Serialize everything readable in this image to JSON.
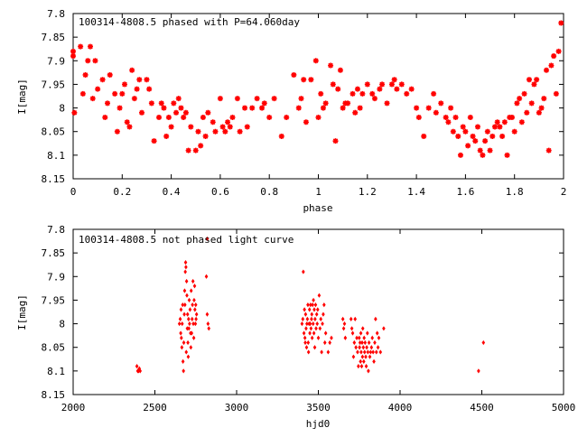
{
  "chart_data": [
    {
      "type": "scatter",
      "title": "100314-4808.5 phased with P=64.060day",
      "xlabel": "phase",
      "ylabel": "I[mag]",
      "xlim": [
        0,
        2
      ],
      "ylim": [
        8.15,
        7.8
      ],
      "y_inverted": true,
      "grid": false,
      "xticks": [
        0,
        0.2,
        0.4,
        0.6,
        0.8,
        1,
        1.2,
        1.4,
        1.6,
        1.8,
        2
      ],
      "xtick_labels": [
        "0",
        "0.2",
        "0.4",
        "0.6",
        "0.8",
        "1",
        "1.2",
        "1.4",
        "1.6",
        "1.8",
        "2"
      ],
      "yticks": [
        7.8,
        7.85,
        7.9,
        7.95,
        8,
        8.05,
        8.1,
        8.15
      ],
      "ytick_labels": [
        "7.8",
        "7.85",
        "7.9",
        "7.95",
        "8",
        "8.05",
        "8.1",
        "8.15"
      ],
      "marker": "star",
      "color": "#ff0000",
      "points": [
        [
          0.0,
          7.88
        ],
        [
          0.0,
          7.89
        ],
        [
          0.005,
          8.01
        ],
        [
          0.03,
          7.87
        ],
        [
          0.04,
          7.97
        ],
        [
          0.05,
          7.93
        ],
        [
          0.06,
          7.9
        ],
        [
          0.07,
          7.87
        ],
        [
          0.08,
          7.98
        ],
        [
          0.09,
          7.9
        ],
        [
          0.1,
          7.96
        ],
        [
          0.12,
          7.94
        ],
        [
          0.13,
          8.02
        ],
        [
          0.14,
          7.99
        ],
        [
          0.15,
          7.93
        ],
        [
          0.17,
          7.97
        ],
        [
          0.18,
          8.05
        ],
        [
          0.19,
          8.0
        ],
        [
          0.2,
          7.97
        ],
        [
          0.21,
          7.95
        ],
        [
          0.22,
          8.03
        ],
        [
          0.23,
          8.04
        ],
        [
          0.24,
          7.92
        ],
        [
          0.25,
          7.98
        ],
        [
          0.26,
          7.96
        ],
        [
          0.27,
          7.94
        ],
        [
          0.28,
          8.01
        ],
        [
          0.3,
          7.94
        ],
        [
          0.31,
          7.96
        ],
        [
          0.32,
          7.99
        ],
        [
          0.33,
          8.07
        ],
        [
          0.35,
          8.02
        ],
        [
          0.36,
          7.99
        ],
        [
          0.37,
          8.0
        ],
        [
          0.38,
          8.06
        ],
        [
          0.39,
          8.02
        ],
        [
          0.4,
          8.04
        ],
        [
          0.41,
          7.99
        ],
        [
          0.42,
          8.01
        ],
        [
          0.43,
          7.98
        ],
        [
          0.44,
          8.0
        ],
        [
          0.45,
          8.02
        ],
        [
          0.46,
          8.01
        ],
        [
          0.47,
          8.09
        ],
        [
          0.48,
          8.04
        ],
        [
          0.5,
          8.09
        ],
        [
          0.51,
          8.05
        ],
        [
          0.52,
          8.08
        ],
        [
          0.53,
          8.02
        ],
        [
          0.54,
          8.06
        ],
        [
          0.55,
          8.01
        ],
        [
          0.57,
          8.03
        ],
        [
          0.58,
          8.05
        ],
        [
          0.6,
          7.98
        ],
        [
          0.61,
          8.04
        ],
        [
          0.62,
          8.05
        ],
        [
          0.63,
          8.03
        ],
        [
          0.64,
          8.04
        ],
        [
          0.65,
          8.02
        ],
        [
          0.67,
          7.98
        ],
        [
          0.68,
          8.05
        ],
        [
          0.7,
          8.0
        ],
        [
          0.71,
          8.04
        ],
        [
          0.73,
          8.0
        ],
        [
          0.75,
          7.98
        ],
        [
          0.77,
          8.0
        ],
        [
          0.78,
          7.99
        ],
        [
          0.8,
          8.02
        ],
        [
          0.82,
          7.98
        ],
        [
          0.85,
          8.06
        ],
        [
          0.87,
          8.02
        ],
        [
          0.9,
          7.93
        ],
        [
          0.92,
          8.0
        ],
        [
          0.93,
          7.98
        ],
        [
          0.94,
          7.94
        ],
        [
          0.95,
          8.03
        ],
        [
          0.97,
          7.94
        ],
        [
          0.99,
          7.9
        ],
        [
          1.0,
          8.02
        ],
        [
          1.01,
          7.97
        ],
        [
          1.02,
          8.0
        ],
        [
          1.03,
          7.99
        ],
        [
          1.05,
          7.91
        ],
        [
          1.06,
          7.95
        ],
        [
          1.07,
          8.07
        ],
        [
          1.08,
          7.96
        ],
        [
          1.09,
          7.92
        ],
        [
          1.1,
          8.0
        ],
        [
          1.11,
          7.99
        ],
        [
          1.12,
          7.99
        ],
        [
          1.14,
          7.97
        ],
        [
          1.15,
          8.01
        ],
        [
          1.16,
          7.96
        ],
        [
          1.17,
          8.0
        ],
        [
          1.18,
          7.97
        ],
        [
          1.2,
          7.95
        ],
        [
          1.22,
          7.97
        ],
        [
          1.23,
          7.98
        ],
        [
          1.25,
          7.96
        ],
        [
          1.26,
          7.95
        ],
        [
          1.28,
          7.99
        ],
        [
          1.3,
          7.95
        ],
        [
          1.31,
          7.94
        ],
        [
          1.32,
          7.96
        ],
        [
          1.34,
          7.95
        ],
        [
          1.36,
          7.97
        ],
        [
          1.38,
          7.96
        ],
        [
          1.4,
          8.0
        ],
        [
          1.41,
          8.02
        ],
        [
          1.43,
          8.06
        ],
        [
          1.45,
          8.0
        ],
        [
          1.47,
          7.97
        ],
        [
          1.48,
          8.01
        ],
        [
          1.5,
          7.99
        ],
        [
          1.52,
          8.02
        ],
        [
          1.53,
          8.03
        ],
        [
          1.54,
          8.0
        ],
        [
          1.55,
          8.05
        ],
        [
          1.56,
          8.02
        ],
        [
          1.57,
          8.06
        ],
        [
          1.58,
          8.1
        ],
        [
          1.59,
          8.04
        ],
        [
          1.6,
          8.05
        ],
        [
          1.61,
          8.08
        ],
        [
          1.62,
          8.02
        ],
        [
          1.63,
          8.06
        ],
        [
          1.64,
          8.07
        ],
        [
          1.65,
          8.04
        ],
        [
          1.66,
          8.09
        ],
        [
          1.67,
          8.1
        ],
        [
          1.68,
          8.07
        ],
        [
          1.69,
          8.05
        ],
        [
          1.7,
          8.09
        ],
        [
          1.71,
          8.06
        ],
        [
          1.72,
          8.04
        ],
        [
          1.73,
          8.03
        ],
        [
          1.74,
          8.04
        ],
        [
          1.75,
          8.06
        ],
        [
          1.76,
          8.03
        ],
        [
          1.77,
          8.1
        ],
        [
          1.78,
          8.02
        ],
        [
          1.79,
          8.02
        ],
        [
          1.8,
          8.05
        ],
        [
          1.81,
          7.99
        ],
        [
          1.82,
          7.98
        ],
        [
          1.83,
          8.03
        ],
        [
          1.84,
          7.97
        ],
        [
          1.85,
          8.01
        ],
        [
          1.86,
          7.94
        ],
        [
          1.87,
          7.99
        ],
        [
          1.88,
          7.95
        ],
        [
          1.89,
          7.94
        ],
        [
          1.9,
          8.01
        ],
        [
          1.91,
          8.0
        ],
        [
          1.92,
          7.98
        ],
        [
          1.93,
          7.92
        ],
        [
          1.94,
          8.09
        ],
        [
          1.95,
          7.91
        ],
        [
          1.96,
          7.89
        ],
        [
          1.97,
          7.97
        ],
        [
          1.98,
          7.88
        ],
        [
          1.99,
          7.82
        ]
      ]
    },
    {
      "type": "scatter",
      "title": "100314-4808.5 not phased light curve",
      "xlabel": "hjd0",
      "ylabel": "I[mag]",
      "xlim": [
        2000,
        5000
      ],
      "ylim": [
        8.15,
        7.8
      ],
      "y_inverted": true,
      "grid": false,
      "xticks": [
        2000,
        2500,
        3000,
        3500,
        4000,
        4500,
        5000
      ],
      "xtick_labels": [
        "2000",
        "2500",
        "3000",
        "3500",
        "4000",
        "4500",
        "5000"
      ],
      "yticks": [
        7.8,
        7.85,
        7.9,
        7.95,
        8,
        8.05,
        8.1,
        8.15
      ],
      "ytick_labels": [
        "7.8",
        "7.85",
        "7.9",
        "7.95",
        "8",
        "8.05",
        "8.1",
        "8.15"
      ],
      "marker": "diamond",
      "color": "#ff0000",
      "points": [
        [
          2390,
          8.09
        ],
        [
          2395,
          8.1
        ],
        [
          2400,
          8.1
        ],
        [
          2405,
          8.095
        ],
        [
          2410,
          8.1
        ],
        [
          2650,
          8.0
        ],
        [
          2655,
          7.99
        ],
        [
          2658,
          8.02
        ],
        [
          2660,
          7.97
        ],
        [
          2662,
          8.03
        ],
        [
          2665,
          8.05
        ],
        [
          2667,
          8.0
        ],
        [
          2670,
          7.96
        ],
        [
          2672,
          8.08
        ],
        [
          2675,
          8.1
        ],
        [
          2677,
          8.04
        ],
        [
          2680,
          7.98
        ],
        [
          2682,
          7.93
        ],
        [
          2684,
          7.96
        ],
        [
          2686,
          7.89
        ],
        [
          2688,
          7.87
        ],
        [
          2690,
          7.88
        ],
        [
          2692,
          8.06
        ],
        [
          2694,
          7.91
        ],
        [
          2696,
          7.94
        ],
        [
          2698,
          8.01
        ],
        [
          2700,
          7.98
        ],
        [
          2702,
          8.04
        ],
        [
          2704,
          8.07
        ],
        [
          2706,
          7.99
        ],
        [
          2708,
          8.01
        ],
        [
          2710,
          7.95
        ],
        [
          2712,
          8.0
        ],
        [
          2715,
          7.97
        ],
        [
          2718,
          8.02
        ],
        [
          2720,
          8.05
        ],
        [
          2722,
          7.93
        ],
        [
          2725,
          8.02
        ],
        [
          2728,
          7.99
        ],
        [
          2730,
          7.96
        ],
        [
          2733,
          7.91
        ],
        [
          2735,
          8.0
        ],
        [
          2738,
          8.03
        ],
        [
          2740,
          7.95
        ],
        [
          2743,
          7.92
        ],
        [
          2745,
          7.97
        ],
        [
          2748,
          8.0
        ],
        [
          2750,
          7.96
        ],
        [
          2752,
          7.99
        ],
        [
          2755,
          7.98
        ],
        [
          2815,
          7.9
        ],
        [
          2820,
          7.98
        ],
        [
          2825,
          8.0
        ],
        [
          2830,
          8.01
        ],
        [
          2820,
          7.82
        ],
        [
          3400,
          8.0
        ],
        [
          3405,
          7.99
        ],
        [
          3408,
          7.89
        ],
        [
          3412,
          8.02
        ],
        [
          3415,
          7.97
        ],
        [
          3418,
          8.03
        ],
        [
          3420,
          8.04
        ],
        [
          3422,
          7.98
        ],
        [
          3425,
          8.01
        ],
        [
          3428,
          8.05
        ],
        [
          3430,
          8.0
        ],
        [
          3433,
          7.99
        ],
        [
          3436,
          7.96
        ],
        [
          3438,
          8.04
        ],
        [
          3440,
          8.06
        ],
        [
          3443,
          8.0
        ],
        [
          3446,
          7.97
        ],
        [
          3448,
          8.02
        ],
        [
          3450,
          8.0
        ],
        [
          3452,
          7.96
        ],
        [
          3455,
          8.01
        ],
        [
          3458,
          7.99
        ],
        [
          3460,
          7.98
        ],
        [
          3462,
          8.03
        ],
        [
          3465,
          7.96
        ],
        [
          3468,
          8.0
        ],
        [
          3470,
          7.95
        ],
        [
          3473,
          8.02
        ],
        [
          3475,
          7.97
        ],
        [
          3478,
          8.05
        ],
        [
          3480,
          7.99
        ],
        [
          3483,
          7.96
        ],
        [
          3486,
          8.01
        ],
        [
          3490,
          7.98
        ],
        [
          3493,
          8.0
        ],
        [
          3496,
          7.97
        ],
        [
          3500,
          8.03
        ],
        [
          3505,
          7.94
        ],
        [
          3510,
          8.01
        ],
        [
          3515,
          7.99
        ],
        [
          3520,
          8.06
        ],
        [
          3525,
          8.0
        ],
        [
          3530,
          7.98
        ],
        [
          3535,
          7.96
        ],
        [
          3540,
          8.04
        ],
        [
          3545,
          8.02
        ],
        [
          3560,
          8.06
        ],
        [
          3570,
          8.04
        ],
        [
          3580,
          8.03
        ],
        [
          3650,
          7.99
        ],
        [
          3655,
          8.01
        ],
        [
          3660,
          8.0
        ],
        [
          3665,
          8.03
        ],
        [
          3700,
          7.99
        ],
        [
          3705,
          8.01
        ],
        [
          3710,
          8.02
        ],
        [
          3715,
          8.07
        ],
        [
          3720,
          8.04
        ],
        [
          3725,
          7.99
        ],
        [
          3730,
          8.05
        ],
        [
          3735,
          8.03
        ],
        [
          3740,
          8.06
        ],
        [
          3745,
          8.09
        ],
        [
          3750,
          8.03
        ],
        [
          3752,
          8.05
        ],
        [
          3755,
          8.04
        ],
        [
          3758,
          8.08
        ],
        [
          3760,
          8.02
        ],
        [
          3762,
          8.06
        ],
        [
          3765,
          8.09
        ],
        [
          3768,
          8.04
        ],
        [
          3770,
          8.07
        ],
        [
          3772,
          8.01
        ],
        [
          3775,
          8.05
        ],
        [
          3778,
          8.08
        ],
        [
          3780,
          8.03
        ],
        [
          3783,
          8.06
        ],
        [
          3786,
          8.04
        ],
        [
          3790,
          8.07
        ],
        [
          3793,
          8.09
        ],
        [
          3796,
          8.05
        ],
        [
          3800,
          8.02
        ],
        [
          3803,
          8.06
        ],
        [
          3806,
          8.1
        ],
        [
          3810,
          8.04
        ],
        [
          3815,
          8.07
        ],
        [
          3820,
          8.06
        ],
        [
          3825,
          8.05
        ],
        [
          3830,
          8.03
        ],
        [
          3835,
          8.06
        ],
        [
          3840,
          8.08
        ],
        [
          3845,
          8.04
        ],
        [
          3850,
          7.99
        ],
        [
          3855,
          8.06
        ],
        [
          3860,
          8.02
        ],
        [
          3865,
          8.05
        ],
        [
          3870,
          8.03
        ],
        [
          3880,
          8.06
        ],
        [
          3900,
          8.01
        ],
        [
          4480,
          8.1
        ],
        [
          4510,
          8.04
        ]
      ]
    }
  ]
}
